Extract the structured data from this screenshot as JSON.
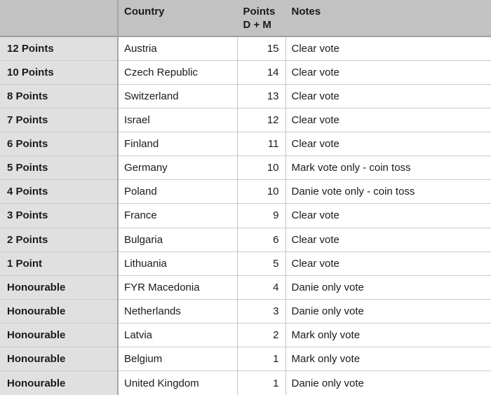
{
  "colors": {
    "header_bg": "#c2c2c2",
    "label_column_bg": "#e0e0e0",
    "row_bg": "#ffffff",
    "row_border": "#cbcbcb",
    "header_border_bottom": "#9e9e9e",
    "label_column_border": "#a6a6a6",
    "column_border": "#c5c5c5",
    "text": "#1a1a1a"
  },
  "table": {
    "header": {
      "rank": "",
      "country": "Country",
      "points_line1": "Points",
      "points_line2": "D + M",
      "notes": "Notes"
    },
    "rows": [
      {
        "rank": "12 Points",
        "country": "Austria",
        "points": "15",
        "notes": "Clear vote"
      },
      {
        "rank": "10 Points",
        "country": "Czech Republic",
        "points": "14",
        "notes": "Clear vote"
      },
      {
        "rank": "8 Points",
        "country": "Switzerland",
        "points": "13",
        "notes": "Clear vote"
      },
      {
        "rank": "7 Points",
        "country": "Israel",
        "points": "12",
        "notes": "Clear vote"
      },
      {
        "rank": "6 Points",
        "country": "Finland",
        "points": "11",
        "notes": "Clear vote"
      },
      {
        "rank": "5 Points",
        "country": "Germany",
        "points": "10",
        "notes": "Mark vote only - coin toss"
      },
      {
        "rank": "4 Points",
        "country": "Poland",
        "points": "10",
        "notes": "Danie vote only - coin toss"
      },
      {
        "rank": "3 Points",
        "country": "France",
        "points": "9",
        "notes": "Clear vote"
      },
      {
        "rank": "2 Points",
        "country": "Bulgaria",
        "points": "6",
        "notes": "Clear vote"
      },
      {
        "rank": "1 Point",
        "country": "Lithuania",
        "points": "5",
        "notes": "Clear vote"
      },
      {
        "rank": "Honourable",
        "country": "FYR Macedonia",
        "points": "4",
        "notes": "Danie only vote"
      },
      {
        "rank": "Honourable",
        "country": "Netherlands",
        "points": "3",
        "notes": "Danie only vote"
      },
      {
        "rank": "Honourable",
        "country": "Latvia",
        "points": "2",
        "notes": "Mark only vote"
      },
      {
        "rank": "Honourable",
        "country": "Belgium",
        "points": "1",
        "notes": "Mark only vote"
      },
      {
        "rank": "Honourable",
        "country": "United Kingdom",
        "points": "1",
        "notes": "Danie only vote"
      }
    ]
  }
}
